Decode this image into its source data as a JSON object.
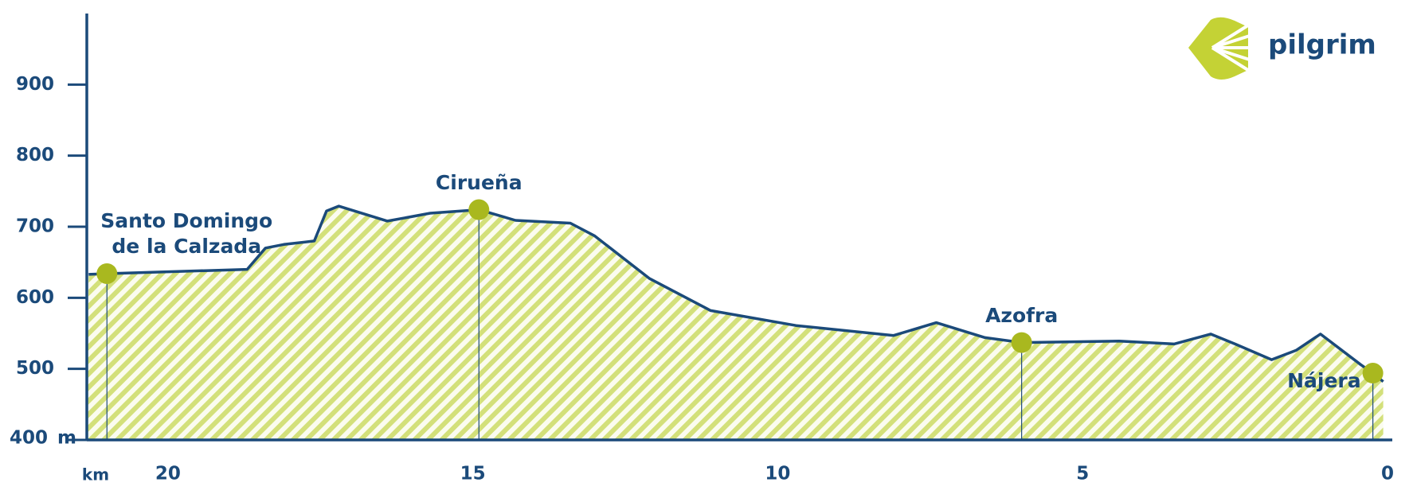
{
  "chart_data": {
    "type": "area",
    "logo": "pilgrim",
    "x_label": "km",
    "y_label": "m",
    "x": [
      21.3,
      21.0,
      18.7,
      18.4,
      18.1,
      17.6,
      17.4,
      17.2,
      16.4,
      15.7,
      14.9,
      14.3,
      13.4,
      13.0,
      12.1,
      11.1,
      9.7,
      8.1,
      7.4,
      6.6,
      6.0,
      4.4,
      3.5,
      2.9,
      2.5,
      1.9,
      1.5,
      1.1,
      0.44,
      0.24,
      0.07
    ],
    "values": [
      633,
      634,
      640,
      670,
      675,
      680,
      722,
      729,
      708,
      719,
      724,
      709,
      705,
      687,
      627,
      582,
      561,
      547,
      565,
      544,
      537,
      539,
      535,
      549,
      535,
      513,
      526,
      549,
      506,
      494,
      482
    ],
    "stops": [
      {
        "label": "Santo Domingo de la Calzada",
        "km": 21.0,
        "elevation": 634
      },
      {
        "label": "Cirueña",
        "km": 14.9,
        "elevation": 724
      },
      {
        "label": "Azofra",
        "km": 6.0,
        "elevation": 537
      },
      {
        "label": "Nájera",
        "km": 0.24,
        "elevation": 494
      }
    ],
    "line_color": "#1b4a7a",
    "fill_color": "#d3e07a",
    "marker_color": "#a9b81f",
    "xlim": [
      21.33,
      0
    ],
    "xticks": [
      20,
      15,
      10,
      5,
      0
    ],
    "ylim": [
      400,
      1000
    ],
    "yticks": [
      400,
      500,
      600,
      700,
      800,
      900
    ]
  }
}
